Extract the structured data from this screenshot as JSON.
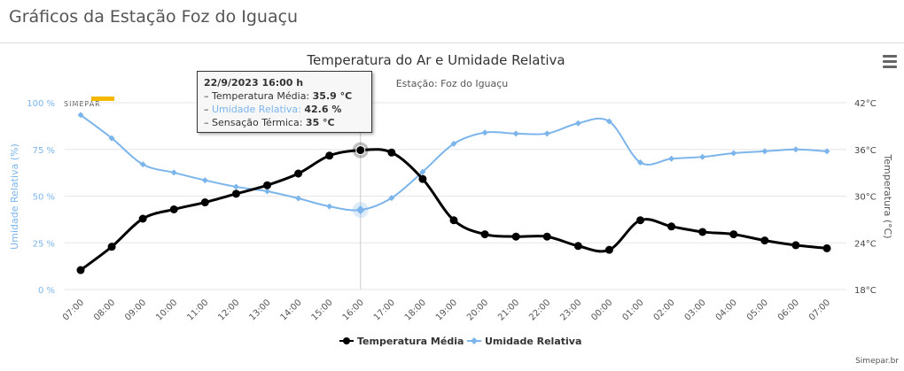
{
  "page_title": "Gráficos da Estação Foz do Iguaçu",
  "credit": "Simepar.br",
  "logo_text": "SIMEPAR",
  "menu_icon": "hamburger-icon",
  "tooltip": {
    "date": "22/9/2023 16:00 h",
    "temp_label": "Temperatura Média:",
    "temp_value": "35.9 °C",
    "hum_label": "Umidade Relativa:",
    "hum_value": "42.6 %",
    "sens_label": "Sensação Térmica:",
    "sens_value": "35 °C"
  },
  "chart_data": {
    "type": "line",
    "title": "Temperatura do Ar e Umidade Relativa",
    "subtitle": "Estação: Foz do Iguaçu",
    "x": [
      "07:00",
      "08:00",
      "09:00",
      "10:00",
      "11:00",
      "12:00",
      "13:00",
      "14:00",
      "15:00",
      "16:00",
      "17:00",
      "18:00",
      "19:00",
      "20:00",
      "21:00",
      "22:00",
      "23:00",
      "00:00",
      "01:00",
      "02:00",
      "03:00",
      "04:00",
      "05:00",
      "06:00",
      "07:00"
    ],
    "y_left": {
      "label": "Umidade Relativa (%)",
      "range": [
        0,
        100
      ],
      "ticks": [
        "0 %",
        "25 %",
        "50 %",
        "75 %",
        "100 %"
      ]
    },
    "y_right": {
      "label": "Temperatura (°C)",
      "range": [
        18,
        42
      ],
      "ticks": [
        "18°C",
        "24°C",
        "30°C",
        "36°C",
        "42°C"
      ]
    },
    "series": [
      {
        "name": "Temperatura Média",
        "axis": "right",
        "color": "#000000",
        "values": [
          20.5,
          23.5,
          27.1,
          28.3,
          29.2,
          30.3,
          31.4,
          32.9,
          35.2,
          35.9,
          35.6,
          32.2,
          26.9,
          25.1,
          24.8,
          24.8,
          23.6,
          23.1,
          26.9,
          26.1,
          25.4,
          25.1,
          24.3,
          23.7,
          23.3
        ]
      },
      {
        "name": "Umidade Relativa",
        "axis": "left",
        "color": "#7cb5ec",
        "values": [
          93.4,
          81,
          67,
          62.6,
          58.5,
          55,
          52.6,
          48.8,
          44.5,
          42.6,
          49,
          63,
          78,
          84,
          83.5,
          83.5,
          89,
          90,
          68,
          70,
          71,
          73,
          74,
          75,
          74
        ]
      }
    ],
    "highlight_index": 9,
    "legend": "bottom-center"
  }
}
